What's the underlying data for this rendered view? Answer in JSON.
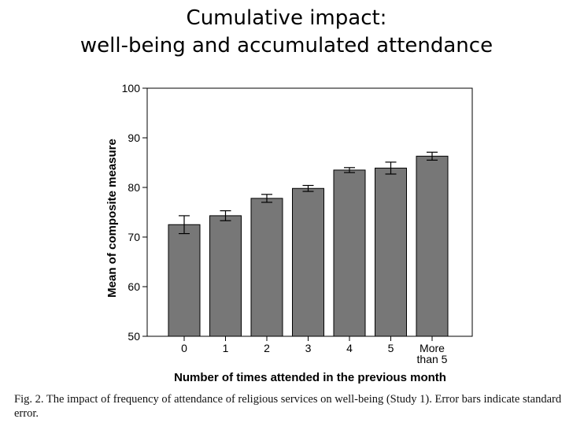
{
  "slide": {
    "title_line1": "Cumulative impact:",
    "title_line2": "well-being and accumulated attendance"
  },
  "chart_data": {
    "type": "bar",
    "categories": [
      "0",
      "1",
      "2",
      "3",
      "4",
      "5",
      "More than 5"
    ],
    "category_lines": [
      [
        "0"
      ],
      [
        "1"
      ],
      [
        "2"
      ],
      [
        "3"
      ],
      [
        "4"
      ],
      [
        "5"
      ],
      [
        "More",
        "than 5"
      ]
    ],
    "values": [
      72.5,
      74.3,
      77.8,
      79.8,
      83.5,
      83.9,
      86.3
    ],
    "errors": [
      1.8,
      1.0,
      0.8,
      0.6,
      0.5,
      1.2,
      0.8
    ],
    "xlabel": "Number of times attended in the previous month",
    "ylabel": "Mean of composite measure",
    "ylim": [
      50,
      100
    ],
    "yticks": [
      50,
      60,
      70,
      80,
      90,
      100
    ],
    "grid": false,
    "bar_color": "#777777"
  },
  "caption": {
    "text": "Fig. 2.  The impact of frequency of attendance of religious services on well-being (Study 1). Error bars indicate standard error."
  }
}
